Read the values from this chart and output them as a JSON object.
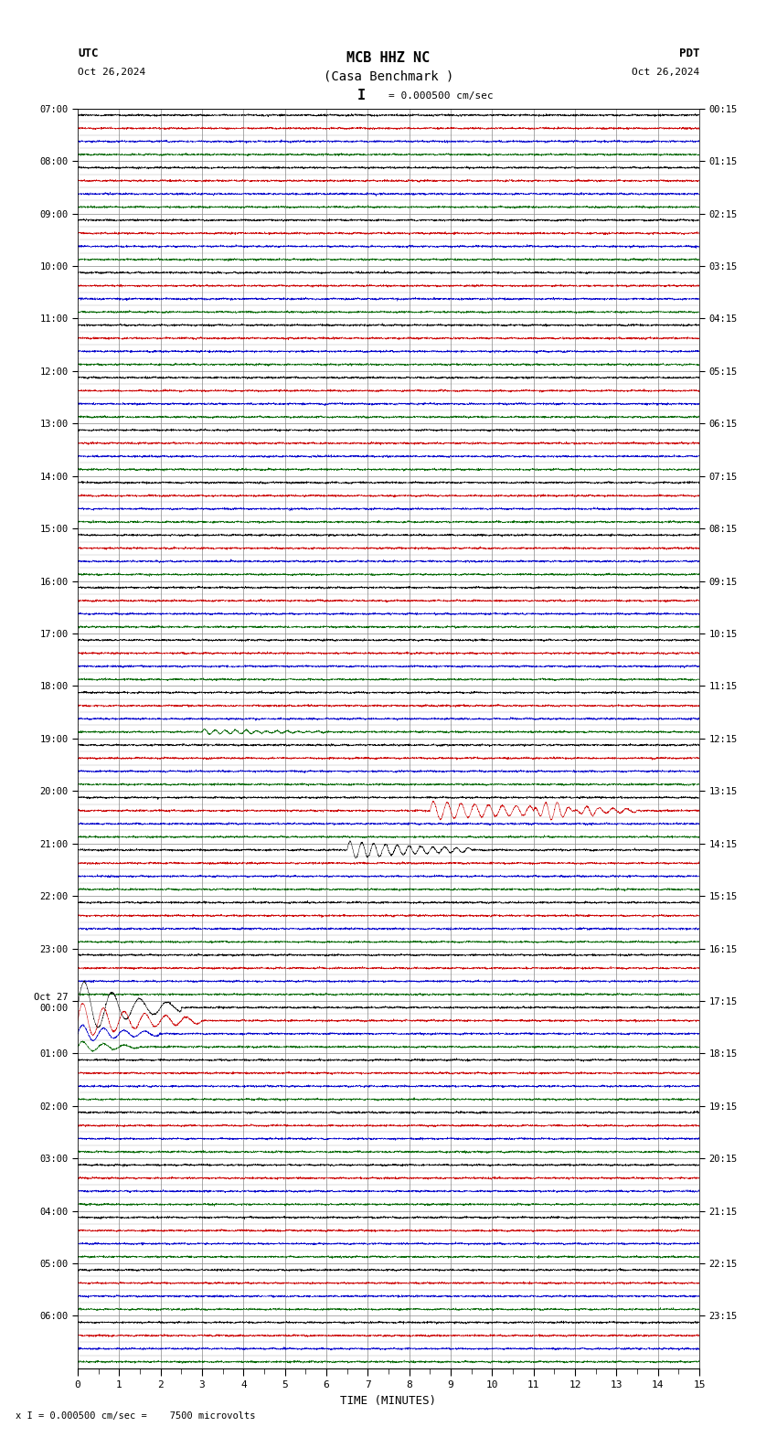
{
  "title_line1": "MCB HHZ NC",
  "title_line2": "(Casa Benchmark )",
  "scale_label": "= 0.000500 cm/sec",
  "scale_bar": "I",
  "left_label": "UTC",
  "left_date": "Oct 26,2024",
  "right_label": "PDT",
  "right_date": "Oct 26,2024",
  "xlabel": "TIME (MINUTES)",
  "bottom_note": "x I = 0.000500 cm/sec =    7500 microvolts",
  "xlim": [
    0,
    15
  ],
  "xticks": [
    0,
    1,
    2,
    3,
    4,
    5,
    6,
    7,
    8,
    9,
    10,
    11,
    12,
    13,
    14,
    15
  ],
  "bg_color": "#ffffff",
  "trace_colors": [
    "#000000",
    "#cc0000",
    "#0000cc",
    "#006600"
  ],
  "grid_color": "#aaaaaa",
  "trace_amplitude": 0.28,
  "noise_amplitude": 0.035,
  "num_rows": 96,
  "left_tick_rows": [
    0,
    4,
    8,
    12,
    16,
    20,
    24,
    28,
    32,
    36,
    40,
    44,
    48,
    52,
    56,
    60,
    64,
    68,
    72,
    76,
    80,
    84,
    88,
    92
  ],
  "left_tick_labels": [
    "07:00",
    "08:00",
    "09:00",
    "10:00",
    "11:00",
    "12:00",
    "13:00",
    "14:00",
    "15:00",
    "16:00",
    "17:00",
    "18:00",
    "19:00",
    "20:00",
    "21:00",
    "22:00",
    "23:00",
    "Oct 27\n00:00",
    "01:00",
    "02:00",
    "03:00",
    "04:00",
    "05:00",
    "06:00"
  ],
  "right_tick_labels": [
    "00:15",
    "01:15",
    "02:15",
    "03:15",
    "04:15",
    "05:15",
    "06:15",
    "07:15",
    "08:15",
    "09:15",
    "10:15",
    "11:15",
    "12:15",
    "13:15",
    "14:15",
    "15:15",
    "16:15",
    "17:15",
    "18:15",
    "19:15",
    "20:15",
    "21:15",
    "22:15",
    "23:15"
  ],
  "green_event_row": 47,
  "blue_event_row": 53,
  "black_event_row": 56,
  "big_blue_spike_row": 68,
  "big_blue_spike2_row": 69,
  "big_blue_spike3_row": 70,
  "big_blue_spike4_row": 71
}
